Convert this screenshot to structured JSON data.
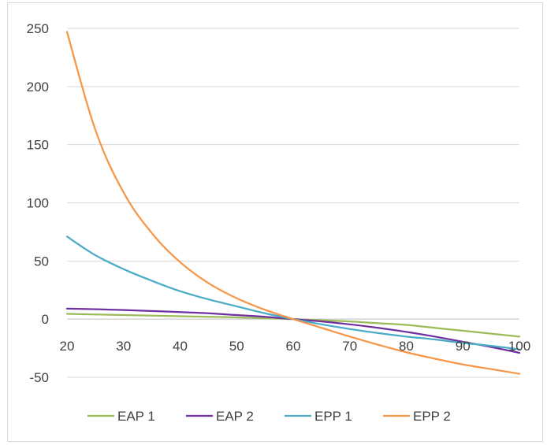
{
  "chart_data": {
    "type": "line",
    "title": "",
    "xlabel": "",
    "ylabel": "",
    "xlim": [
      20,
      100
    ],
    "ylim": [
      -50,
      250
    ],
    "x_ticks": [
      20,
      30,
      40,
      50,
      60,
      70,
      80,
      90,
      100
    ],
    "y_ticks": [
      -50,
      0,
      50,
      100,
      150,
      200,
      250
    ],
    "x_tick_labels": [
      "20",
      "30",
      "40",
      "50",
      "60",
      "70",
      "80",
      "90",
      "100"
    ],
    "y_tick_labels": [
      "-50",
      "0",
      "50",
      "100",
      "150",
      "200",
      "250"
    ],
    "grid": "horizontal",
    "legend_position": "bottom",
    "x": [
      20,
      25,
      30,
      35,
      40,
      45,
      50,
      55,
      60,
      65,
      70,
      75,
      80,
      85,
      90,
      95,
      100
    ],
    "series": [
      {
        "name": "EAP 1",
        "color": "#9bbb59",
        "values": [
          4.5,
          4.0,
          3.5,
          3.0,
          2.5,
          2.0,
          1.5,
          0.8,
          0,
          -1.0,
          -2.0,
          -3.5,
          -5.0,
          -7.5,
          -10.0,
          -12.5,
          -15.0
        ]
      },
      {
        "name": "EAP 2",
        "color": "#7030a0",
        "values": [
          9.0,
          8.5,
          7.8,
          7.0,
          6.0,
          5.0,
          3.5,
          2.0,
          0,
          -2.0,
          -4.5,
          -7.5,
          -11.0,
          -15.0,
          -19.5,
          -24.0,
          -29.0
        ]
      },
      {
        "name": "EPP 1",
        "color": "#4bacc6",
        "values": [
          71,
          55,
          43,
          33,
          24,
          17,
          11,
          5,
          0,
          -4.5,
          -8.5,
          -12.0,
          -15.0,
          -17.5,
          -20.5,
          -23.0,
          -26.0
        ]
      },
      {
        "name": "EPP 2",
        "color": "#f79646",
        "values": [
          247,
          163,
          109,
          74,
          49,
          31,
          18,
          8,
          0,
          -7.5,
          -15.0,
          -22.0,
          -28.5,
          -34.0,
          -39.0,
          -43.0,
          -47.0
        ]
      }
    ]
  }
}
